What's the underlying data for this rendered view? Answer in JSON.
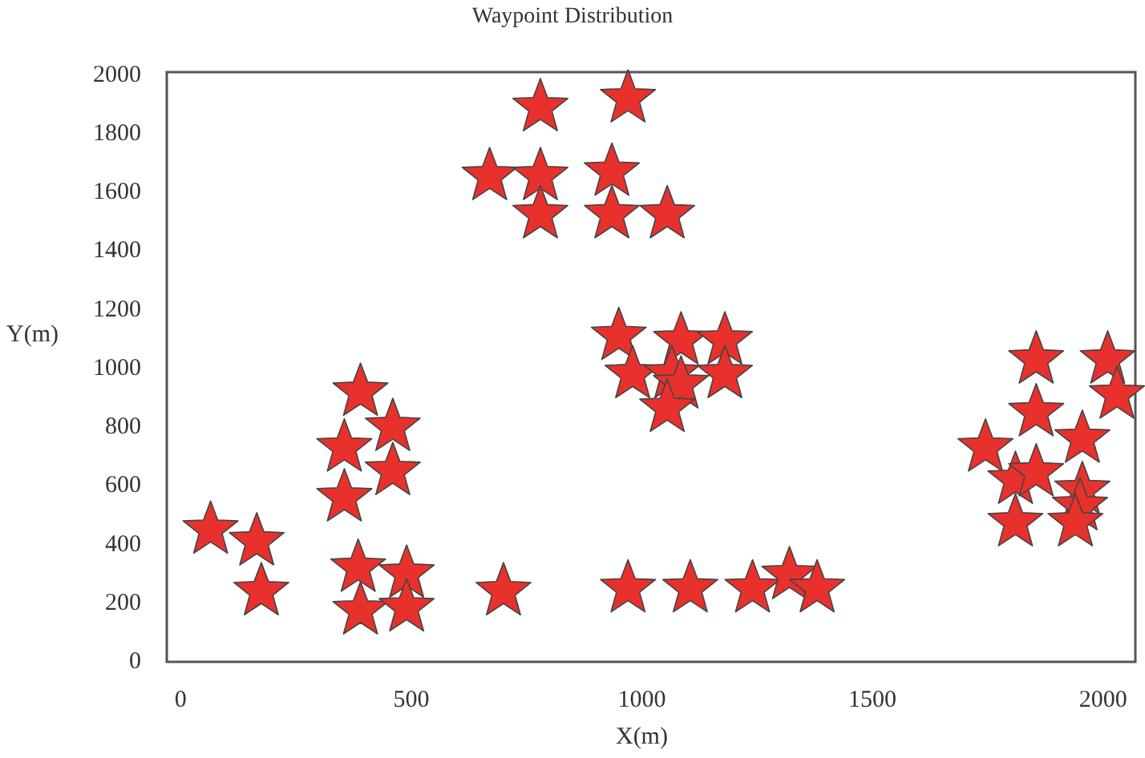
{
  "chart_data": {
    "type": "scatter",
    "title": "Waypoint Distribution",
    "xlabel": "X(m)",
    "ylabel": "Y(m)",
    "xlim": [
      -30,
      2070
    ],
    "ylim": [
      0,
      2010
    ],
    "xticks": [
      0,
      500,
      1000,
      1500,
      2000
    ],
    "yticks": [
      0,
      200,
      400,
      600,
      800,
      1000,
      1200,
      1400,
      1600,
      1800,
      2000
    ],
    "grid": false,
    "marker": "star",
    "series": [
      {
        "color": "#e8312c",
        "x": [
          65,
          165,
          175,
          390,
          460,
          355,
          460,
          355,
          385,
          490,
          390,
          490,
          700,
          780,
          670,
          780,
          780,
          970,
          935,
          935,
          1055,
          950,
          1085,
          1180,
          980,
          1065,
          1085,
          1180,
          1055,
          970,
          1105,
          1240,
          1320,
          1380,
          1855,
          2010,
          2030,
          1855,
          1955,
          1745,
          1810,
          1855,
          1955,
          1950,
          1810,
          1940
        ],
        "values": [
          450,
          410,
          240,
          920,
          800,
          730,
          650,
          560,
          320,
          300,
          175,
          185,
          240,
          1890,
          1655,
          1655,
          1525,
          1920,
          1670,
          1525,
          1525,
          1110,
          1095,
          1095,
          980,
          980,
          945,
          980,
          865,
          250,
          250,
          250,
          295,
          250,
          1030,
          1030,
          910,
          850,
          760,
          730,
          620,
          645,
          585,
          530,
          475,
          475
        ]
      }
    ]
  }
}
